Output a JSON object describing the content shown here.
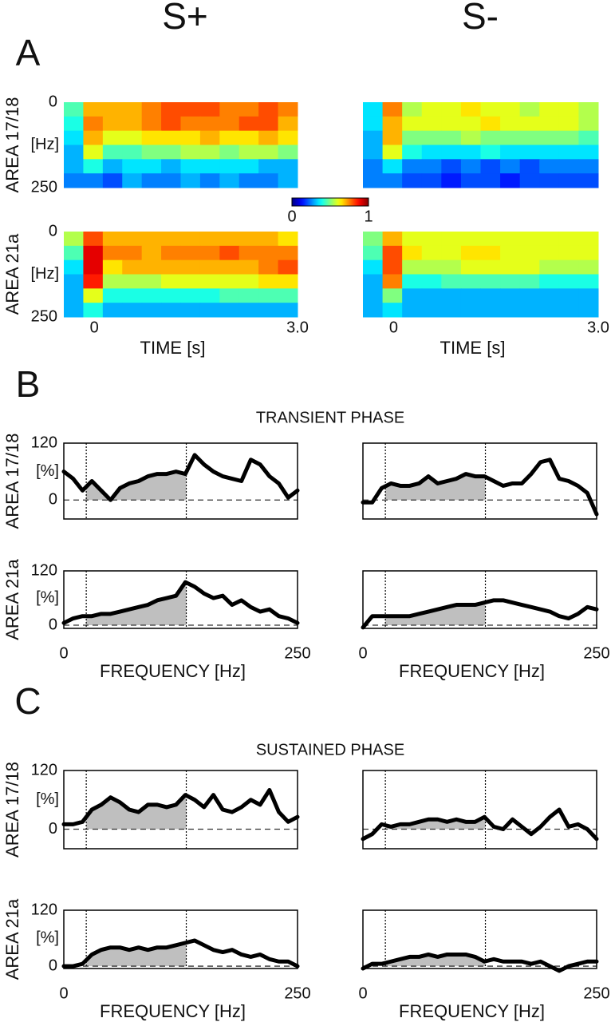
{
  "figure": {
    "columns": [
      "S+",
      "S-"
    ],
    "panels": [
      "A",
      "B",
      "C"
    ],
    "phases": [
      "TRANSIENT PHASE",
      "SUSTAINED PHASE"
    ]
  },
  "chart_data": [
    {
      "type": "heatmap",
      "ylabel": "AREA 17/18",
      "yunit": "[Hz]",
      "xlim": [
        -0.45,
        3.0
      ],
      "ylim": [
        0,
        250
      ],
      "yticks": [
        0,
        250
      ],
      "y_inverted": true,
      "colormap": "jet",
      "clim": [
        0,
        1
      ],
      "z": [
        [
          0.45,
          0.7,
          0.7,
          0.7,
          0.75,
          0.8,
          0.8,
          0.8,
          0.75,
          0.75,
          0.8,
          0.75
        ],
        [
          0.4,
          0.75,
          0.7,
          0.7,
          0.75,
          0.8,
          0.75,
          0.75,
          0.75,
          0.8,
          0.8,
          0.7
        ],
        [
          0.35,
          0.7,
          0.6,
          0.6,
          0.65,
          0.65,
          0.65,
          0.7,
          0.65,
          0.65,
          0.7,
          0.65
        ],
        [
          0.3,
          0.6,
          0.45,
          0.45,
          0.5,
          0.5,
          0.55,
          0.55,
          0.5,
          0.55,
          0.55,
          0.5
        ],
        [
          0.3,
          0.4,
          0.3,
          0.35,
          0.35,
          0.3,
          0.35,
          0.35,
          0.35,
          0.35,
          0.3,
          0.3
        ],
        [
          0.25,
          0.25,
          0.2,
          0.3,
          0.25,
          0.25,
          0.3,
          0.25,
          0.3,
          0.25,
          0.25,
          0.3
        ]
      ]
    },
    {
      "type": "heatmap",
      "xlim": [
        -0.45,
        3.0
      ],
      "ylim": [
        0,
        250
      ],
      "y_inverted": true,
      "colormap": "jet",
      "clim": [
        0,
        1
      ],
      "z": [
        [
          0.35,
          0.75,
          0.55,
          0.6,
          0.6,
          0.65,
          0.6,
          0.6,
          0.55,
          0.6,
          0.6,
          0.55
        ],
        [
          0.35,
          0.7,
          0.6,
          0.6,
          0.6,
          0.6,
          0.65,
          0.6,
          0.6,
          0.6,
          0.6,
          0.55
        ],
        [
          0.3,
          0.7,
          0.5,
          0.5,
          0.5,
          0.55,
          0.5,
          0.5,
          0.5,
          0.5,
          0.5,
          0.45
        ],
        [
          0.3,
          0.6,
          0.4,
          0.35,
          0.35,
          0.35,
          0.4,
          0.35,
          0.35,
          0.35,
          0.35,
          0.35
        ],
        [
          0.25,
          0.35,
          0.25,
          0.25,
          0.2,
          0.25,
          0.2,
          0.25,
          0.2,
          0.25,
          0.25,
          0.25
        ],
        [
          0.25,
          0.25,
          0.2,
          0.2,
          0.15,
          0.2,
          0.2,
          0.15,
          0.2,
          0.2,
          0.2,
          0.2
        ]
      ]
    },
    {
      "type": "heatmap",
      "ylabel": "AREA 21a",
      "yunit": "[Hz]",
      "xlim": [
        -0.45,
        3.0
      ],
      "ylim": [
        0,
        250
      ],
      "yticks": [
        0,
        250
      ],
      "y_inverted": true,
      "colormap": "jet",
      "clim": [
        0,
        1
      ],
      "xticks": [
        0,
        {
          "value": 3,
          "label": "3.0"
        }
      ],
      "xlabel": "TIME [s]",
      "z": [
        [
          0.55,
          0.8,
          0.7,
          0.7,
          0.7,
          0.7,
          0.7,
          0.7,
          0.7,
          0.7,
          0.7,
          0.65
        ],
        [
          0.45,
          0.9,
          0.75,
          0.75,
          0.7,
          0.75,
          0.75,
          0.75,
          0.8,
          0.75,
          0.75,
          0.75
        ],
        [
          0.35,
          0.9,
          0.65,
          0.7,
          0.7,
          0.7,
          0.7,
          0.7,
          0.7,
          0.7,
          0.75,
          0.8
        ],
        [
          0.3,
          0.85,
          0.55,
          0.55,
          0.55,
          0.6,
          0.6,
          0.6,
          0.6,
          0.6,
          0.65,
          0.65
        ],
        [
          0.3,
          0.6,
          0.4,
          0.4,
          0.4,
          0.4,
          0.4,
          0.4,
          0.45,
          0.45,
          0.45,
          0.45
        ],
        [
          0.3,
          0.4,
          0.3,
          0.3,
          0.3,
          0.3,
          0.3,
          0.3,
          0.3,
          0.3,
          0.3,
          0.3
        ]
      ]
    },
    {
      "type": "heatmap",
      "xlim": [
        -0.45,
        3.0
      ],
      "ylim": [
        0,
        250
      ],
      "y_inverted": true,
      "colormap": "jet",
      "clim": [
        0,
        1
      ],
      "xticks": [
        0,
        {
          "value": 3,
          "label": "3.0"
        }
      ],
      "xlabel": "TIME [s]",
      "z": [
        [
          0.5,
          0.7,
          0.6,
          0.6,
          0.6,
          0.6,
          0.6,
          0.6,
          0.6,
          0.6,
          0.6,
          0.6
        ],
        [
          0.45,
          0.8,
          0.65,
          0.6,
          0.6,
          0.65,
          0.65,
          0.6,
          0.6,
          0.6,
          0.6,
          0.6
        ],
        [
          0.35,
          0.8,
          0.55,
          0.55,
          0.55,
          0.6,
          0.6,
          0.6,
          0.6,
          0.55,
          0.55,
          0.55
        ],
        [
          0.3,
          0.75,
          0.4,
          0.4,
          0.45,
          0.45,
          0.45,
          0.45,
          0.45,
          0.4,
          0.4,
          0.4
        ],
        [
          0.3,
          0.5,
          0.3,
          0.3,
          0.3,
          0.3,
          0.3,
          0.3,
          0.3,
          0.3,
          0.3,
          0.3
        ],
        [
          0.3,
          0.35,
          0.3,
          0.3,
          0.3,
          0.3,
          0.3,
          0.3,
          0.3,
          0.3,
          0.3,
          0.3
        ]
      ]
    },
    {
      "type": "colorbar",
      "colormap": "jet",
      "clim": [
        0,
        1
      ],
      "ticks": [
        0,
        1
      ]
    },
    {
      "type": "line",
      "ylabel": "AREA 17/18",
      "yunit": "[%]",
      "xlim": [
        0,
        250
      ],
      "ylim": [
        -40,
        120
      ],
      "yticks": [
        0,
        120
      ],
      "vlines": [
        24,
        131
      ],
      "hline": 0,
      "shade_color": "#bfbfbf",
      "x": [
        0,
        10,
        20,
        30,
        40,
        50,
        60,
        70,
        80,
        90,
        100,
        110,
        120,
        130,
        140,
        150,
        160,
        170,
        180,
        190,
        200,
        210,
        220,
        230,
        240,
        250
      ],
      "series": [
        {
          "color": "#000000",
          "values": [
            60,
            45,
            20,
            40,
            20,
            0,
            25,
            35,
            40,
            50,
            55,
            55,
            60,
            55,
            95,
            75,
            60,
            50,
            45,
            40,
            85,
            75,
            50,
            35,
            5,
            20
          ]
        }
      ]
    },
    {
      "type": "line",
      "xlim": [
        0,
        250
      ],
      "ylim": [
        -40,
        120
      ],
      "vlines": [
        24,
        131
      ],
      "hline": 0,
      "shade_color": "#bfbfbf",
      "x": [
        0,
        10,
        20,
        30,
        40,
        50,
        60,
        70,
        80,
        90,
        100,
        110,
        120,
        130,
        140,
        150,
        160,
        170,
        180,
        190,
        200,
        210,
        220,
        230,
        240,
        250
      ],
      "series": [
        {
          "color": "#000000",
          "values": [
            -5,
            -5,
            25,
            35,
            30,
            30,
            35,
            50,
            35,
            40,
            45,
            55,
            50,
            50,
            40,
            30,
            35,
            35,
            55,
            80,
            85,
            45,
            40,
            30,
            15,
            -30
          ]
        }
      ]
    },
    {
      "type": "line",
      "ylabel": "AREA 21a",
      "yunit": "[%]",
      "xlim": [
        0,
        250
      ],
      "ylim": [
        -7,
        120
      ],
      "yticks": [
        0,
        120
      ],
      "xticks": [
        0,
        250
      ],
      "xlabel": "FREQUENCY [Hz]",
      "vlines": [
        24,
        131
      ],
      "hline": 0,
      "shade_color": "#bfbfbf",
      "x": [
        0,
        10,
        20,
        30,
        40,
        50,
        60,
        70,
        80,
        90,
        100,
        110,
        120,
        130,
        140,
        150,
        160,
        170,
        180,
        190,
        200,
        210,
        220,
        230,
        240,
        250
      ],
      "series": [
        {
          "color": "#000000",
          "values": [
            5,
            15,
            20,
            20,
            25,
            25,
            30,
            35,
            40,
            45,
            55,
            60,
            65,
            95,
            85,
            70,
            60,
            65,
            45,
            55,
            40,
            30,
            35,
            20,
            15,
            5
          ]
        }
      ]
    },
    {
      "type": "line",
      "xlim": [
        0,
        250
      ],
      "ylim": [
        -7,
        120
      ],
      "xticks": [
        0,
        250
      ],
      "xlabel": "FREQUENCY [Hz]",
      "vlines": [
        24,
        131
      ],
      "hline": 0,
      "shade_color": "#bfbfbf",
      "x": [
        0,
        10,
        20,
        30,
        40,
        50,
        60,
        70,
        80,
        90,
        100,
        110,
        120,
        130,
        140,
        150,
        160,
        170,
        180,
        190,
        200,
        210,
        220,
        230,
        240,
        250
      ],
      "series": [
        {
          "color": "#000000",
          "values": [
            -5,
            20,
            20,
            20,
            20,
            20,
            25,
            30,
            35,
            40,
            45,
            45,
            45,
            50,
            55,
            55,
            50,
            45,
            40,
            35,
            30,
            20,
            15,
            25,
            40,
            35
          ]
        }
      ]
    },
    {
      "type": "line",
      "ylabel": "AREA 17/18",
      "yunit": "[%]",
      "xlim": [
        0,
        250
      ],
      "ylim": [
        -40,
        120
      ],
      "yticks": [
        0,
        120
      ],
      "vlines": [
        24,
        131
      ],
      "hline": 0,
      "shade_color": "#bfbfbf",
      "x": [
        0,
        10,
        20,
        30,
        40,
        50,
        60,
        70,
        80,
        90,
        100,
        110,
        120,
        130,
        140,
        150,
        160,
        170,
        180,
        190,
        200,
        210,
        220,
        230,
        240,
        250
      ],
      "series": [
        {
          "color": "#000000",
          "values": [
            10,
            10,
            15,
            40,
            50,
            65,
            55,
            40,
            35,
            50,
            50,
            45,
            50,
            70,
            60,
            45,
            70,
            40,
            35,
            45,
            60,
            50,
            80,
            35,
            15,
            25
          ]
        }
      ]
    },
    {
      "type": "line",
      "xlim": [
        0,
        250
      ],
      "ylim": [
        -40,
        120
      ],
      "vlines": [
        24,
        131
      ],
      "hline": 0,
      "shade_color": "#bfbfbf",
      "x": [
        0,
        10,
        20,
        30,
        40,
        50,
        60,
        70,
        80,
        90,
        100,
        110,
        120,
        130,
        140,
        150,
        160,
        170,
        180,
        190,
        200,
        210,
        220,
        230,
        240,
        250
      ],
      "series": [
        {
          "color": "#000000",
          "values": [
            -20,
            -10,
            10,
            5,
            10,
            10,
            15,
            20,
            20,
            15,
            20,
            15,
            15,
            25,
            5,
            0,
            20,
            5,
            -10,
            5,
            25,
            40,
            5,
            10,
            0,
            -20
          ]
        }
      ]
    },
    {
      "type": "line",
      "ylabel": "AREA 21a",
      "yunit": "[%]",
      "xlim": [
        0,
        250
      ],
      "ylim": [
        -5,
        120
      ],
      "yticks": [
        0,
        120
      ],
      "xticks": [
        0,
        250
      ],
      "xlabel": "FREQUENCY [Hz]",
      "vlines": [
        24,
        131
      ],
      "hline": 0,
      "shade_color": "#bfbfbf",
      "x": [
        0,
        10,
        20,
        30,
        40,
        50,
        60,
        70,
        80,
        90,
        100,
        110,
        120,
        130,
        140,
        150,
        160,
        170,
        180,
        190,
        200,
        210,
        220,
        230,
        240,
        250
      ],
      "series": [
        {
          "color": "#000000",
          "values": [
            0,
            0,
            5,
            25,
            35,
            40,
            40,
            35,
            40,
            35,
            40,
            40,
            45,
            50,
            55,
            45,
            35,
            30,
            35,
            25,
            20,
            25,
            15,
            10,
            10,
            0
          ]
        }
      ]
    },
    {
      "type": "line",
      "xlim": [
        0,
        250
      ],
      "ylim": [
        -5,
        120
      ],
      "xticks": [
        0,
        250
      ],
      "xlabel": "FREQUENCY [Hz]",
      "vlines": [
        24,
        131
      ],
      "hline": 0,
      "shade_color": "#bfbfbf",
      "x": [
        0,
        10,
        20,
        30,
        40,
        50,
        60,
        70,
        80,
        90,
        100,
        110,
        120,
        130,
        140,
        150,
        160,
        170,
        180,
        190,
        200,
        210,
        220,
        230,
        240,
        250
      ],
      "series": [
        {
          "color": "#000000",
          "values": [
            -5,
            5,
            5,
            10,
            15,
            20,
            20,
            25,
            20,
            25,
            25,
            25,
            20,
            10,
            15,
            10,
            10,
            10,
            5,
            10,
            0,
            -10,
            0,
            5,
            10,
            10
          ]
        }
      ]
    }
  ]
}
